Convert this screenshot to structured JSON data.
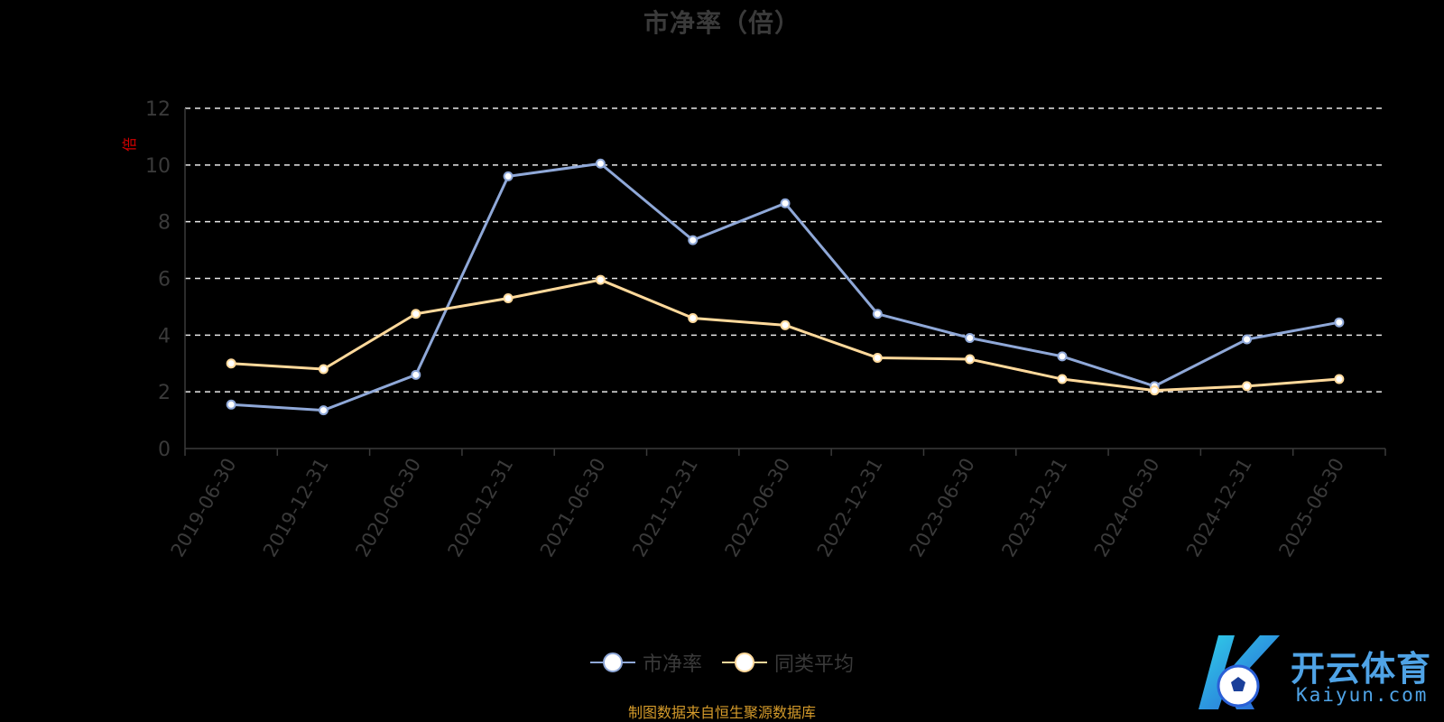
{
  "chart_data": {
    "type": "line",
    "title": "市净率（倍）",
    "ylabel": "倍",
    "ylim": [
      0,
      12
    ],
    "yticks": [
      0,
      2,
      4,
      6,
      8,
      10,
      12
    ],
    "grid": true,
    "legend_position": "bottom-center",
    "categories": [
      "2019-06-30",
      "2019-12-31",
      "2020-06-30",
      "2020-12-31",
      "2021-06-30",
      "2021-12-31",
      "2022-06-30",
      "2022-12-31",
      "2023-06-30",
      "2023-12-31",
      "2024-06-30",
      "2024-12-31",
      "2025-06-30"
    ],
    "series": [
      {
        "name": "市净率",
        "color": "#8fa8d8",
        "values": [
          1.55,
          1.35,
          2.6,
          9.6,
          10.05,
          7.35,
          8.65,
          4.75,
          3.9,
          3.25,
          2.2,
          3.85,
          4.45
        ]
      },
      {
        "name": "同类平均",
        "color": "#ffd99b",
        "values": [
          3.0,
          2.8,
          4.75,
          5.3,
          5.95,
          4.6,
          4.35,
          3.2,
          3.15,
          2.45,
          2.05,
          2.2,
          2.45
        ]
      }
    ]
  },
  "source_note": "制图数据来自恒生聚源数据库",
  "logo": {
    "text_cn": "开云体育",
    "text_en": "Kaiyun.com",
    "letter": "K"
  }
}
